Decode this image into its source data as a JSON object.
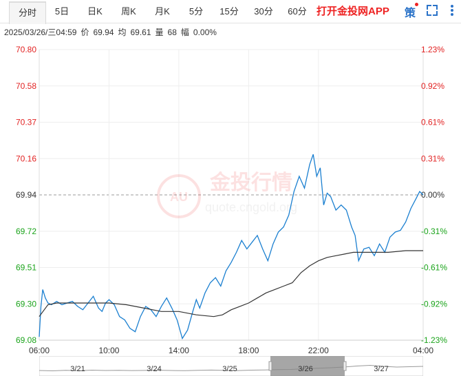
{
  "toolbar": {
    "tabs": [
      "分时",
      "5日",
      "日K",
      "周K",
      "月K",
      "5分",
      "15分",
      "30分",
      "60分"
    ],
    "active_tab": "分时",
    "app_link": "打开金投网APP",
    "ce_label": "策",
    "icons": [
      "fullscreen-icon",
      "more-icon"
    ],
    "accent_color": "#2a72c8",
    "app_color": "#e22222"
  },
  "info": {
    "datetime": "2025/03/26/三04:59",
    "price_label": "价",
    "price": "69.94",
    "avg_label": "均",
    "avg": "69.61",
    "volume_label": "量",
    "volume": "68",
    "change_label": "幅",
    "change": "0.00%"
  },
  "watermark": {
    "text": "金投行情",
    "url": "quote.cngold.org",
    "logo_text": "AU"
  },
  "chart_data": {
    "type": "line",
    "ylim": [
      69.08,
      70.8
    ],
    "reference_price": 69.94,
    "y_ticks_left": [
      "70.80",
      "70.58",
      "70.37",
      "70.16",
      "69.94",
      "69.72",
      "69.51",
      "69.30",
      "69.08"
    ],
    "y_ticks_right": [
      "1.23%",
      "0.92%",
      "0.61%",
      "0.31%",
      "0.00%",
      "-0.31%",
      "-0.61%",
      "-0.92%",
      "-1.23%"
    ],
    "x_ticks": [
      "06:00",
      "10:00",
      "14:00",
      "18:00",
      "22:00",
      "04:00"
    ],
    "x_tick_hours": [
      0,
      4,
      8,
      12,
      16,
      22
    ],
    "x_range_hours": [
      0,
      22
    ],
    "up_color": "#e22222",
    "down_color": "#1aa31a",
    "series": [
      {
        "color": "#1a7fd0",
        "hours": [
          0.0,
          0.1,
          0.2,
          0.35,
          0.5,
          0.7,
          1.0,
          1.3,
          1.6,
          1.9,
          2.2,
          2.5,
          2.8,
          3.1,
          3.4,
          3.6,
          3.8,
          4.0,
          4.3,
          4.6,
          4.9,
          5.2,
          5.5,
          5.8,
          6.1,
          6.4,
          6.7,
          7.0,
          7.3,
          7.6,
          7.9,
          8.2,
          8.5,
          8.8,
          9.0,
          9.2,
          9.5,
          9.8,
          10.1,
          10.4,
          10.7,
          11.0,
          11.3,
          11.6,
          11.9,
          12.2,
          12.5,
          12.8,
          13.1,
          13.4,
          13.7,
          14.0,
          14.3,
          14.6,
          14.9,
          15.2,
          15.5,
          15.7,
          15.9,
          16.1,
          16.3,
          16.5,
          16.7,
          17.0,
          17.3,
          17.6,
          17.9,
          18.1,
          18.3,
          18.6,
          18.9,
          19.2,
          19.5,
          19.8,
          20.1,
          20.4,
          20.7,
          21.0,
          21.3,
          21.6,
          21.8,
          22.0
        ],
        "values": [
          69.1,
          69.28,
          69.38,
          69.33,
          69.3,
          69.29,
          69.31,
          69.29,
          69.3,
          69.31,
          69.28,
          69.26,
          69.3,
          69.34,
          69.27,
          69.25,
          69.3,
          69.32,
          69.29,
          69.22,
          69.2,
          69.15,
          69.13,
          69.22,
          69.28,
          69.26,
          69.22,
          69.28,
          69.33,
          69.27,
          69.2,
          69.09,
          69.14,
          69.25,
          69.32,
          69.27,
          69.36,
          69.42,
          69.45,
          69.4,
          69.49,
          69.54,
          69.6,
          69.67,
          69.62,
          69.66,
          69.7,
          69.62,
          69.55,
          69.65,
          69.72,
          69.75,
          69.82,
          69.96,
          70.05,
          69.98,
          70.12,
          70.18,
          70.05,
          70.1,
          69.88,
          69.95,
          69.93,
          69.85,
          69.88,
          69.85,
          69.75,
          69.7,
          69.55,
          69.62,
          69.63,
          69.58,
          69.65,
          69.6,
          69.69,
          69.72,
          69.73,
          69.78,
          69.86,
          69.92,
          69.96,
          69.94
        ]
      },
      {
        "color": "#333333",
        "hours": [
          0.0,
          0.5,
          1.0,
          2.0,
          3.0,
          4.0,
          5.0,
          6.0,
          7.0,
          8.0,
          9.0,
          10.0,
          10.5,
          11.0,
          11.5,
          12.0,
          12.5,
          13.0,
          13.5,
          14.0,
          14.5,
          15.0,
          15.5,
          16.0,
          16.5,
          17.0,
          17.5,
          18.0,
          19.0,
          20.0,
          21.0,
          22.0
        ],
        "values": [
          69.22,
          69.29,
          69.3,
          69.3,
          69.3,
          69.3,
          69.29,
          69.27,
          69.25,
          69.25,
          69.23,
          69.22,
          69.23,
          69.26,
          69.28,
          69.3,
          69.33,
          69.36,
          69.38,
          69.4,
          69.42,
          69.48,
          69.52,
          69.55,
          69.57,
          69.58,
          69.59,
          69.6,
          69.6,
          69.6,
          69.61,
          69.61
        ]
      }
    ]
  },
  "navigator": {
    "dates": [
      "3/21",
      "3/24",
      "3/25",
      "3/26",
      "3/27"
    ]
  }
}
